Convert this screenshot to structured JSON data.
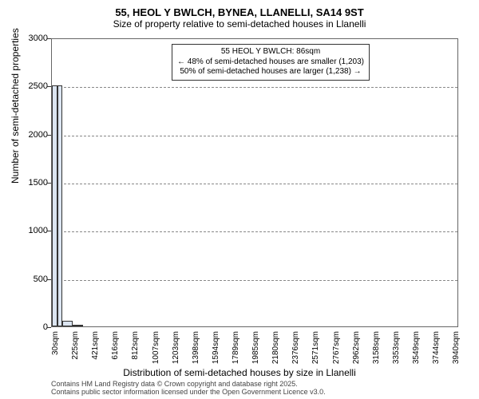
{
  "title": {
    "line1": "55, HEOL Y BWLCH, BYNEA, LLANELLI, SA14 9ST",
    "line2": "Size of property relative to semi-detached houses in Llanelli"
  },
  "chart": {
    "type": "histogram",
    "background": "#ffffff",
    "grid_color": "#888888",
    "bar_fill": "#dbe5f1",
    "bar_stroke": "#333333",
    "highlight_color": "#ff0000",
    "ylabel": "Number of semi-detached properties",
    "xlabel": "Distribution of semi-detached houses by size in Llanelli",
    "ylim": [
      0,
      3000
    ],
    "ytick_step": 500,
    "yticks": [
      0,
      500,
      1000,
      1500,
      2000,
      2500,
      3000
    ],
    "x_min": 30,
    "x_max": 4000,
    "xticks": [
      30,
      225,
      421,
      616,
      812,
      1007,
      1203,
      1398,
      1594,
      1789,
      1985,
      2180,
      2376,
      2571,
      2767,
      2962,
      3158,
      3353,
      3549,
      3744,
      3940
    ],
    "xtick_suffix": "sqm",
    "highlight_x": 86,
    "highlight_value": 2500,
    "bars": [
      {
        "x0": 30,
        "x1": 130,
        "value": 2500
      },
      {
        "x0": 130,
        "x1": 230,
        "value": 60
      },
      {
        "x0": 230,
        "x1": 330,
        "value": 10
      }
    ],
    "annotation": {
      "line1": "55 HEOL Y BWLCH: 86sqm",
      "line2": "← 48% of semi-detached houses are smaller (1,203)",
      "line3": "50% of semi-detached houses are larger (1,238) →"
    },
    "label_fontsize": 12,
    "tick_fontsize": 11
  },
  "footer": {
    "line1": "Contains HM Land Registry data © Crown copyright and database right 2025.",
    "line2": "Contains public sector information licensed under the Open Government Licence v3.0."
  }
}
